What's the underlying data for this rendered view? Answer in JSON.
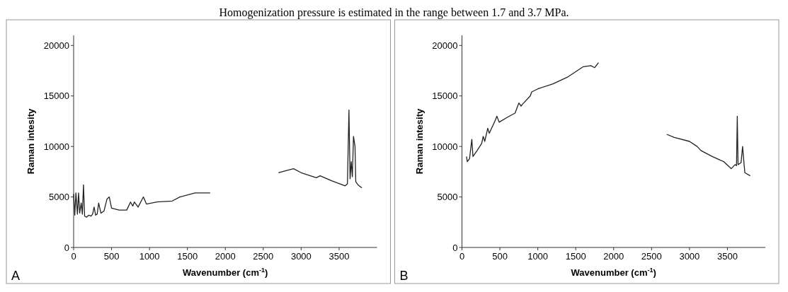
{
  "chart_data": [
    {
      "type": "line",
      "title": "Homogenization pressure is estimated in the range between 1.7 and 3.7 MPa.",
      "annotations": [
        "A"
      ],
      "xlabel": "Wavenumber (cm$^{-1}$)",
      "ylabel": "Raman intesity",
      "xlim": [
        0,
        4000
      ],
      "xticks": [
        0,
        500,
        1000,
        1500,
        2000,
        2500,
        3000,
        3500
      ],
      "ylim": [
        0,
        21000
      ],
      "yticks": [
        0,
        5000,
        10000,
        15000,
        20000
      ],
      "series": [
        {
          "color": "#222222",
          "x": [
            0,
            15,
            30,
            50,
            65,
            80,
            100,
            115,
            130,
            145,
            170,
            200,
            230,
            250,
            270,
            290,
            310,
            330,
            360,
            400,
            440,
            470,
            500,
            600,
            700,
            750,
            780,
            800,
            850,
            920,
            960,
            1100,
            1300,
            1400,
            1600,
            1800,
            2250,
            2700,
            2800,
            2900,
            3000,
            3200,
            3250,
            3400,
            3580,
            3610,
            3630,
            3645,
            3660,
            3675,
            3690,
            3710,
            3720,
            3750,
            3800
          ],
          "values": [
            5300,
            3200,
            5400,
            3300,
            5400,
            3400,
            4400,
            3300,
            6200,
            3100,
            3000,
            3200,
            3100,
            3300,
            4000,
            3200,
            3300,
            4400,
            3400,
            3600,
            4800,
            5000,
            3900,
            3700,
            3700,
            4500,
            4100,
            4500,
            4000,
            5000,
            4300,
            4500,
            4600,
            5000,
            5400,
            5400,
            null,
            7400,
            7600,
            7800,
            7400,
            6900,
            7100,
            6600,
            6100,
            6300,
            13600,
            6800,
            8500,
            7000,
            11000,
            10000,
            6500,
            6200,
            5900
          ]
        }
      ]
    },
    {
      "type": "line",
      "annotations": [
        "B"
      ],
      "xlabel": "Wavenumber (cm$^{-1}$)",
      "ylabel": "Raman intesity",
      "xlim": [
        0,
        4000
      ],
      "xticks": [
        0,
        500,
        1000,
        1500,
        2000,
        2500,
        3000,
        3500
      ],
      "ylim": [
        0,
        21000
      ],
      "yticks": [
        0,
        5000,
        10000,
        15000,
        20000
      ],
      "series": [
        {
          "color": "#222222",
          "x": [
            60,
            70,
            100,
            130,
            145,
            200,
            260,
            280,
            300,
            340,
            360,
            440,
            460,
            490,
            600,
            700,
            750,
            780,
            800,
            900,
            920,
            1000,
            1200,
            1400,
            1600,
            1700,
            1750,
            1800,
            2250,
            2700,
            2800,
            3000,
            3100,
            3150,
            3300,
            3450,
            3550,
            3600,
            3620,
            3630,
            3640,
            3680,
            3700,
            3720,
            3730,
            3800
          ],
          "values": [
            9000,
            8500,
            8800,
            10700,
            9000,
            9600,
            10300,
            11000,
            10500,
            11800,
            11300,
            12600,
            13000,
            12400,
            12900,
            13300,
            14300,
            14000,
            14200,
            15000,
            15400,
            15700,
            16200,
            16900,
            17900,
            18000,
            17800,
            18300,
            null,
            11200,
            10900,
            10500,
            10000,
            9600,
            9000,
            8500,
            7800,
            8200,
            8100,
            13000,
            8200,
            8400,
            10000,
            8200,
            7400,
            7100
          ]
        }
      ]
    }
  ]
}
